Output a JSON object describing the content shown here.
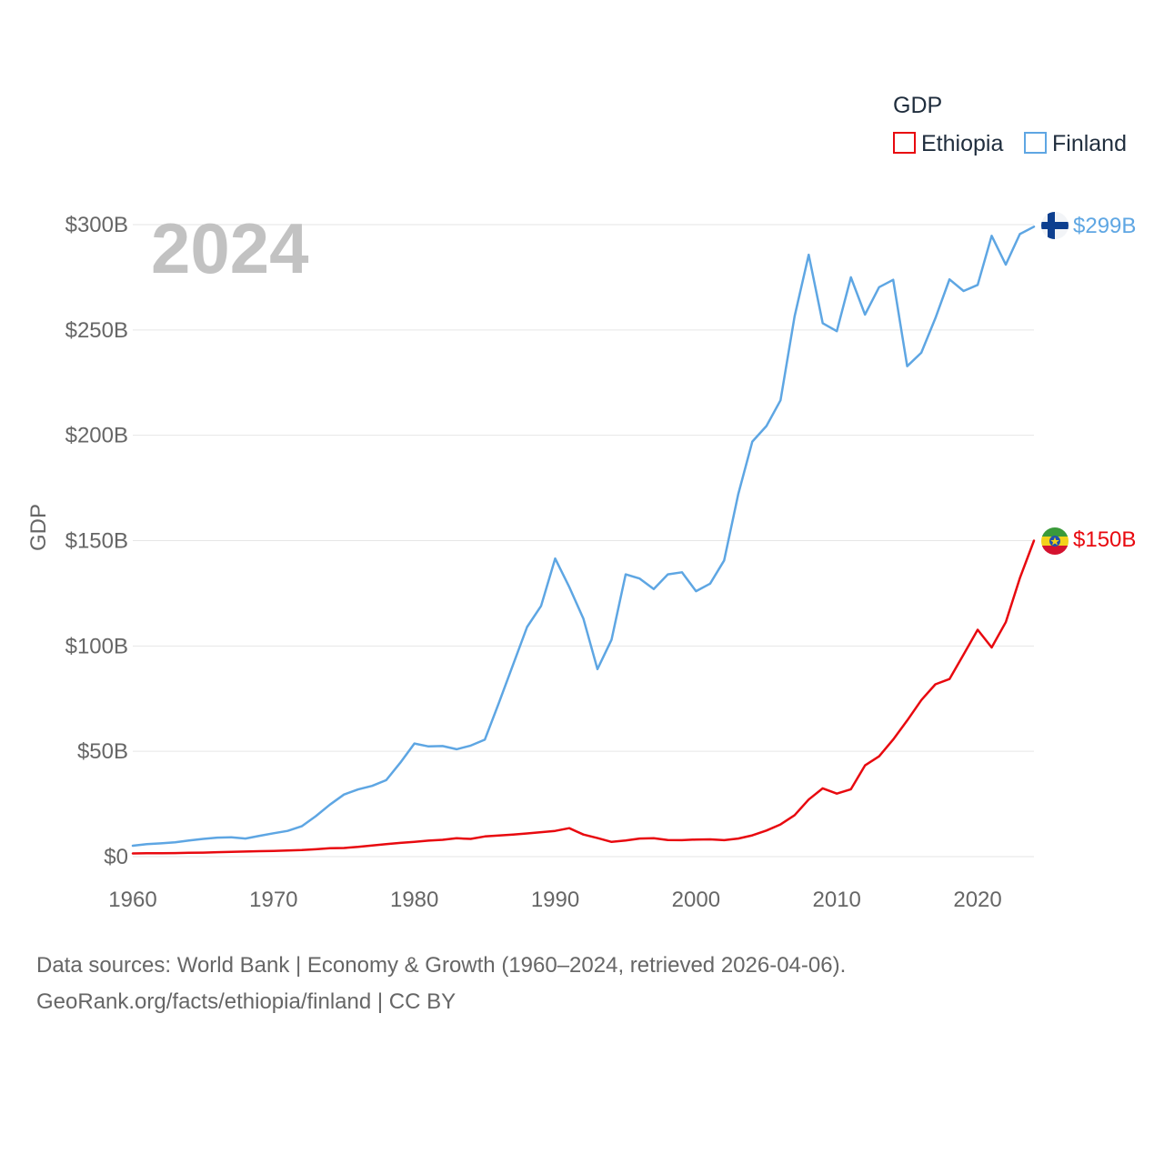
{
  "chart_data": {
    "type": "line",
    "title": "GDP",
    "ylabel": "GDP",
    "xlabel": "",
    "year_label": "2024",
    "xlim": [
      1960,
      2024
    ],
    "ylim": [
      0,
      300
    ],
    "x_ticks": [
      1960,
      1970,
      1980,
      1990,
      2000,
      2010,
      2020
    ],
    "x_tick_labels": [
      "1960",
      "1970",
      "1980",
      "1990",
      "2000",
      "2010",
      "2020"
    ],
    "y_ticks": [
      0,
      50,
      100,
      150,
      200,
      250,
      300
    ],
    "y_tick_labels": [
      "$0",
      "$50B",
      "$100B",
      "$150B",
      "$200B",
      "$250B",
      "$300B"
    ],
    "grid": true,
    "legend": {
      "title": "GDP",
      "position": "top-right",
      "entries": [
        {
          "name": "Ethiopia",
          "color": "#e8090f"
        },
        {
          "name": "Finland",
          "color": "#5ea6e3"
        }
      ]
    },
    "x": [
      1960,
      1961,
      1962,
      1963,
      1964,
      1965,
      1966,
      1967,
      1968,
      1969,
      1970,
      1971,
      1972,
      1973,
      1974,
      1975,
      1976,
      1977,
      1978,
      1979,
      1980,
      1981,
      1982,
      1983,
      1984,
      1985,
      1986,
      1987,
      1988,
      1989,
      1990,
      1991,
      1992,
      1993,
      1994,
      1995,
      1996,
      1997,
      1998,
      1999,
      2000,
      2001,
      2002,
      2003,
      2004,
      2005,
      2006,
      2007,
      2008,
      2009,
      2010,
      2011,
      2012,
      2013,
      2014,
      2015,
      2016,
      2017,
      2018,
      2019,
      2020,
      2021,
      2022,
      2023,
      2024
    ],
    "series": [
      {
        "name": "Finland",
        "color": "#5ea6e3",
        "end_label": "$299B",
        "values": [
          5.2,
          5.9,
          6.3,
          6.8,
          7.7,
          8.4,
          9.0,
          9.2,
          8.6,
          9.9,
          11.1,
          12.2,
          14.4,
          19.2,
          24.7,
          29.5,
          31.9,
          33.6,
          36.3,
          44.6,
          53.7,
          52.3,
          52.5,
          51.0,
          52.7,
          55.5,
          73.0,
          91.0,
          109.0,
          119.0,
          141.5,
          128.0,
          113.0,
          89.0,
          103.0,
          134.0,
          132.0,
          127.0,
          134.0,
          135.0,
          126.0,
          129.6,
          140.6,
          172.0,
          197.0,
          204.4,
          216.6,
          256.5,
          285.7,
          253.2,
          249.4,
          275.0,
          257.3,
          270.3,
          273.8,
          232.8,
          239.2,
          255.6,
          274.0,
          268.5,
          271.4,
          294.7,
          281.0,
          295.5,
          299.0
        ]
      },
      {
        "name": "Ethiopia",
        "color": "#e8090f",
        "end_label": "$150B",
        "values": [
          1.5,
          1.6,
          1.6,
          1.7,
          1.8,
          1.9,
          2.1,
          2.3,
          2.4,
          2.6,
          2.7,
          2.9,
          3.1,
          3.5,
          4.0,
          4.1,
          4.6,
          5.3,
          5.9,
          6.5,
          7.0,
          7.6,
          8.0,
          8.7,
          8.4,
          9.6,
          10.0,
          10.5,
          11.0,
          11.6,
          12.2,
          13.5,
          10.5,
          8.8,
          7.0,
          7.7,
          8.6,
          8.7,
          7.9,
          7.8,
          8.1,
          8.2,
          7.8,
          8.6,
          10.1,
          12.4,
          15.3,
          19.7,
          27.1,
          32.4,
          29.9,
          32.0,
          43.3,
          47.6,
          55.6,
          64.6,
          74.3,
          81.8,
          84.3,
          95.9,
          107.7,
          99.3,
          111.3,
          132.2,
          150.0
        ]
      }
    ]
  },
  "footer": {
    "line1": "Data sources: World Bank | Economy & Growth (1960–2024, retrieved 2026-04-06).",
    "line2": "GeoRank.org/facts/ethiopia/finland | CC BY"
  }
}
